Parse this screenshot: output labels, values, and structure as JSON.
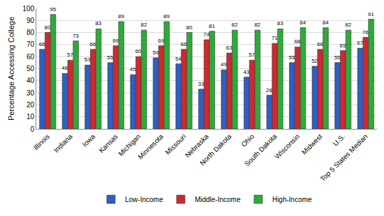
{
  "chart_data": {
    "type": "bar",
    "y_label": "Percentage Accessing College",
    "categories": [
      "Illinois",
      "Indiana",
      "Iowa",
      "Kansas",
      "Michigan",
      "Minnesota",
      "Missouri",
      "Nebraska",
      "North Dakota",
      "Ohio",
      "South Dakota",
      "Wisconsin",
      "Midwest",
      "U.S.",
      "Top 5 States Median"
    ],
    "series": [
      {
        "name": "Low-Income",
        "color": "#2f5fc4",
        "values": [
          66,
          46,
          53,
          55,
          45,
          59,
          54,
          33,
          49,
          43,
          28,
          55,
          52,
          55,
          67
        ]
      },
      {
        "name": "Middle-Income",
        "color": "#d0282e",
        "values": [
          80,
          57,
          66,
          69,
          60,
          69,
          66,
          74,
          63,
          57,
          71,
          68,
          66,
          65,
          76
        ]
      },
      {
        "name": "High-Income",
        "color": "#2eaa3a",
        "values": [
          95,
          73,
          83,
          89,
          82,
          89,
          80,
          81,
          82,
          82,
          83,
          84,
          84,
          82,
          91
        ]
      }
    ],
    "ylim": [
      0,
      100
    ],
    "yticks": [
      0,
      10,
      20,
      30,
      40,
      50,
      60,
      70,
      80,
      90,
      100
    ],
    "grid": true,
    "legend": "bottom",
    "data_labels": true
  }
}
